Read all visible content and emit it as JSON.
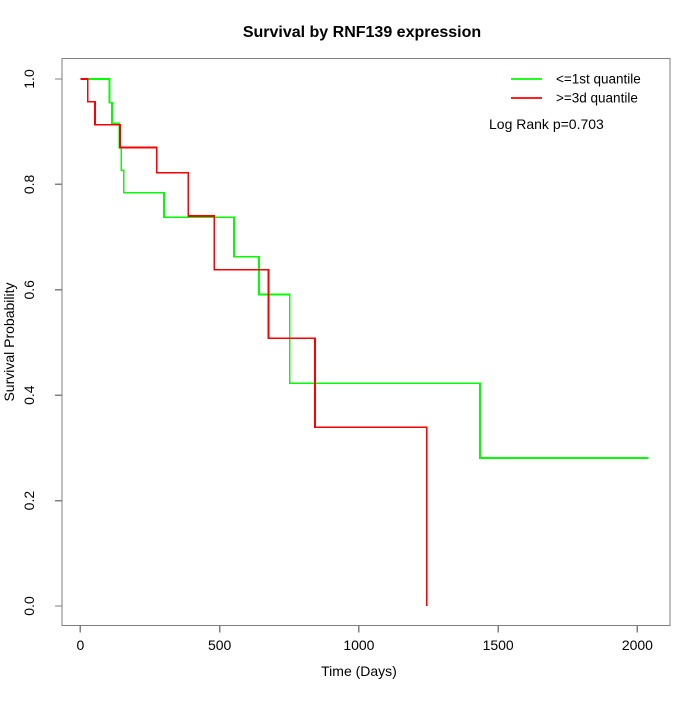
{
  "title": "Survival by RNF139 expression",
  "x_axis": {
    "label": "Time (Days)",
    "ticks": [
      "0",
      "500",
      "1000",
      "1500",
      "2000"
    ]
  },
  "y_axis": {
    "label": "Survival Probability",
    "ticks": [
      "0.0",
      "0.2",
      "0.4",
      "0.6",
      "0.8",
      "1.0"
    ]
  },
  "legend": {
    "items": [
      {
        "label": "<=1st quantile",
        "color": "#00ff00"
      },
      {
        "label": ">=3d quantile",
        "color": "#ff0000"
      }
    ],
    "note": "Log Rank p=0.703"
  },
  "colors": {
    "group1": "#00ff00",
    "group2": "#ff0000",
    "axis": "#7f7f7f",
    "text": "#000000"
  },
  "chart_data": {
    "type": "line",
    "subtype": "kaplan-meier-step",
    "title": "Survival by RNF139 expression",
    "xlabel": "Time (Days)",
    "ylabel": "Survival Probability",
    "xlim": [
      0,
      2100
    ],
    "ylim": [
      0.0,
      1.0
    ],
    "x_ticks": [
      0,
      500,
      1000,
      1500,
      2000
    ],
    "y_ticks": [
      0.0,
      0.2,
      0.4,
      0.6,
      0.8,
      1.0
    ],
    "grid": false,
    "legend_position": "top-right",
    "annotation": "Log Rank p=0.703",
    "series": [
      {
        "name": "<=1st quantile",
        "color": "#00ff00",
        "points": [
          [
            0,
            1.0
          ],
          [
            104,
            1.0
          ],
          [
            104,
            0.955
          ],
          [
            113,
            0.955
          ],
          [
            113,
            0.916
          ],
          [
            139,
            0.916
          ],
          [
            139,
            0.87
          ],
          [
            147,
            0.87
          ],
          [
            147,
            0.827
          ],
          [
            156,
            0.827
          ],
          [
            156,
            0.784
          ],
          [
            300,
            0.784
          ],
          [
            300,
            0.738
          ],
          [
            551,
            0.738
          ],
          [
            551,
            0.663
          ],
          [
            641,
            0.663
          ],
          [
            641,
            0.591
          ],
          [
            752,
            0.591
          ],
          [
            752,
            0.423
          ],
          [
            1435,
            0.423
          ],
          [
            1435,
            0.281
          ],
          [
            2039,
            0.281
          ]
        ]
      },
      {
        "name": ">=3d quantile",
        "color": "#ff0000",
        "points": [
          [
            0,
            1.0
          ],
          [
            26,
            1.0
          ],
          [
            26,
            0.957
          ],
          [
            52,
            0.957
          ],
          [
            52,
            0.913
          ],
          [
            142,
            0.913
          ],
          [
            142,
            0.87
          ],
          [
            274,
            0.87
          ],
          [
            274,
            0.822
          ],
          [
            387,
            0.822
          ],
          [
            387,
            0.74
          ],
          [
            480,
            0.74
          ],
          [
            480,
            0.638
          ],
          [
            675,
            0.638
          ],
          [
            675,
            0.508
          ],
          [
            842,
            0.508
          ],
          [
            842,
            0.339
          ],
          [
            1243,
            0.339
          ],
          [
            1243,
            0.0
          ]
        ]
      }
    ]
  }
}
